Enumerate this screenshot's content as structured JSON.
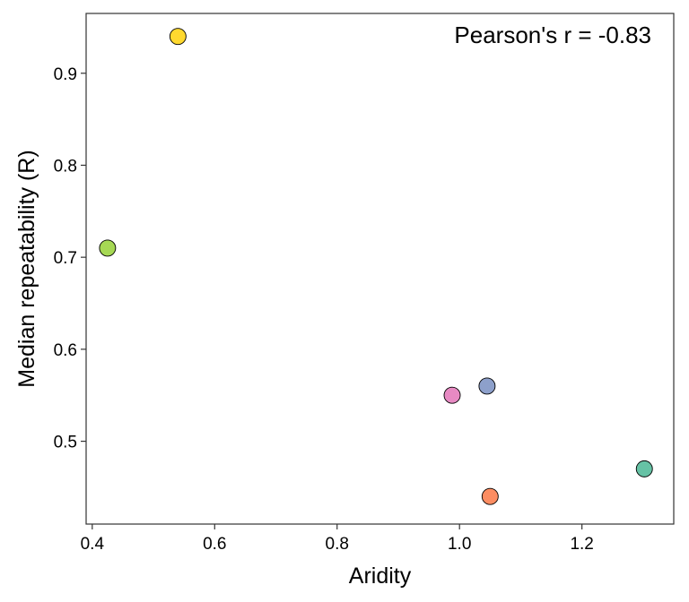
{
  "chart_data": {
    "type": "scatter",
    "title": "",
    "xlabel": "Aridity",
    "ylabel": "Median repeatability (R)",
    "xlim": [
      0.39,
      1.35
    ],
    "ylim": [
      0.41,
      0.965
    ],
    "xticks": [
      0.4,
      0.6,
      0.8,
      1.0,
      1.2
    ],
    "xtick_labels": [
      "0.4",
      "0.6",
      "0.8",
      "1.0",
      "1.2"
    ],
    "yticks": [
      0.5,
      0.6,
      0.7,
      0.8,
      0.9
    ],
    "ytick_labels": [
      "0.5",
      "0.6",
      "0.7",
      "0.8",
      "0.9"
    ],
    "grid": false,
    "legend": "none",
    "annotation": {
      "text": "Pearson's r =  -0.83",
      "position": "top-right"
    },
    "points": [
      {
        "x": 0.54,
        "y": 0.94,
        "color": "#FFD92F"
      },
      {
        "x": 0.425,
        "y": 0.71,
        "color": "#A6D854"
      },
      {
        "x": 0.988,
        "y": 0.55,
        "color": "#E78AC3"
      },
      {
        "x": 1.045,
        "y": 0.56,
        "color": "#8DA0CB"
      },
      {
        "x": 1.05,
        "y": 0.44,
        "color": "#FC8D62"
      },
      {
        "x": 1.302,
        "y": 0.47,
        "color": "#66C2A5"
      }
    ]
  }
}
